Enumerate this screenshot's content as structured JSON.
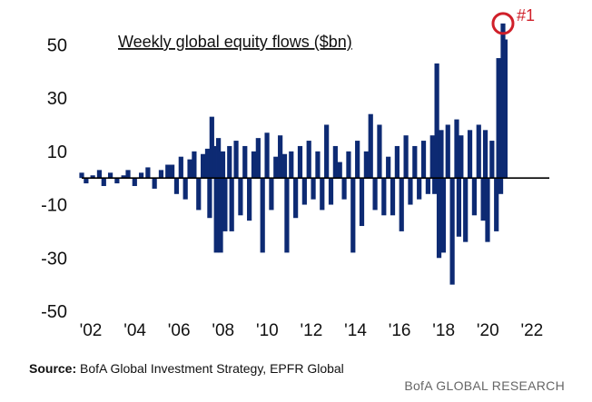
{
  "chart_data": {
    "type": "bar",
    "title": "Weekly global equity flows ($bn)",
    "xlabel": "",
    "ylabel": "",
    "ylim": [
      -50,
      60
    ],
    "xlim": [
      2002,
      2023.2
    ],
    "y_ticks": [
      "50",
      "30",
      "10",
      "-10",
      "-30",
      "-50"
    ],
    "y_tick_values": [
      50,
      30,
      10,
      -10,
      -30,
      -50
    ],
    "x_ticks": [
      "'02",
      "'04",
      "'06",
      "'08",
      "'10",
      "'12",
      "'14",
      "'16",
      "'18",
      "'20",
      "'22"
    ],
    "x_tick_values": [
      2002,
      2004,
      2006,
      2008,
      2010,
      2012,
      2014,
      2016,
      2018,
      2020,
      2022
    ],
    "bar_color": "#0d2a73",
    "baseline_color": "#000000",
    "grid": false,
    "legend": "none",
    "annotation": {
      "text": "#1",
      "x": 2021.1,
      "y": 58,
      "color": "#d0202a"
    },
    "series": [
      {
        "x": [
          2002.0,
          2002.2,
          2002.5,
          2002.8,
          2003.0,
          2003.3,
          2003.6,
          2003.9,
          2004.1,
          2004.4,
          2004.7,
          2005.0,
          2005.3,
          2005.6,
          2005.9,
          2006.1,
          2006.3,
          2006.5,
          2006.7,
          2006.9,
          2007.1,
          2007.3,
          2007.5,
          2007.7,
          2007.8,
          2007.9,
          2008.0,
          2008.1,
          2008.2,
          2008.3,
          2008.4,
          2008.5,
          2008.7,
          2008.8,
          2009.0,
          2009.2,
          2009.4,
          2009.6,
          2009.8,
          2010.0,
          2010.2,
          2010.4,
          2010.6,
          2010.8,
          2011.0,
          2011.2,
          2011.3,
          2011.5,
          2011.7,
          2011.9,
          2012.1,
          2012.3,
          2012.5,
          2012.7,
          2012.9,
          2013.1,
          2013.3,
          2013.5,
          2013.7,
          2013.9,
          2014.1,
          2014.3,
          2014.5,
          2014.7,
          2014.9,
          2015.1,
          2015.3,
          2015.5,
          2015.7,
          2015.9,
          2016.1,
          2016.3,
          2016.5,
          2016.7,
          2016.9,
          2017.1,
          2017.3,
          2017.5,
          2017.7,
          2017.9,
          2018.0,
          2018.1,
          2018.2,
          2018.3,
          2018.4,
          2018.6,
          2018.8,
          2019.0,
          2019.1,
          2019.2,
          2019.4,
          2019.6,
          2019.8,
          2020.0,
          2020.2,
          2020.3,
          2020.4,
          2020.6,
          2020.8,
          2020.9,
          2021.0,
          2021.1,
          2021.2
        ],
        "values": [
          2,
          -2,
          1,
          3,
          -3,
          2,
          -2,
          1,
          3,
          -3,
          2,
          4,
          -4,
          3,
          5,
          5,
          -6,
          8,
          -8,
          7,
          10,
          -12,
          9,
          11,
          -15,
          23,
          12,
          -28,
          15,
          -28,
          10,
          -20,
          12,
          -20,
          14,
          -14,
          12,
          -16,
          10,
          15,
          -28,
          17,
          -12,
          8,
          16,
          9,
          -28,
          10,
          -15,
          12,
          -10,
          14,
          -8,
          10,
          -12,
          20,
          -10,
          12,
          6,
          -8,
          10,
          -28,
          14,
          -18,
          10,
          24,
          -12,
          20,
          -14,
          8,
          -14,
          12,
          -20,
          16,
          -10,
          12,
          -8,
          14,
          -6,
          16,
          -6,
          43,
          -30,
          18,
          -28,
          20,
          -40,
          22,
          -22,
          16,
          -24,
          18,
          -14,
          20,
          -16,
          18,
          -24,
          14,
          -20,
          45,
          -6,
          58,
          52
        ]
      }
    ]
  },
  "source": {
    "label": "Source:",
    "text": "BofA Global Investment Strategy, EPFR Global"
  },
  "brand": "BofA GLOBAL RESEARCH"
}
